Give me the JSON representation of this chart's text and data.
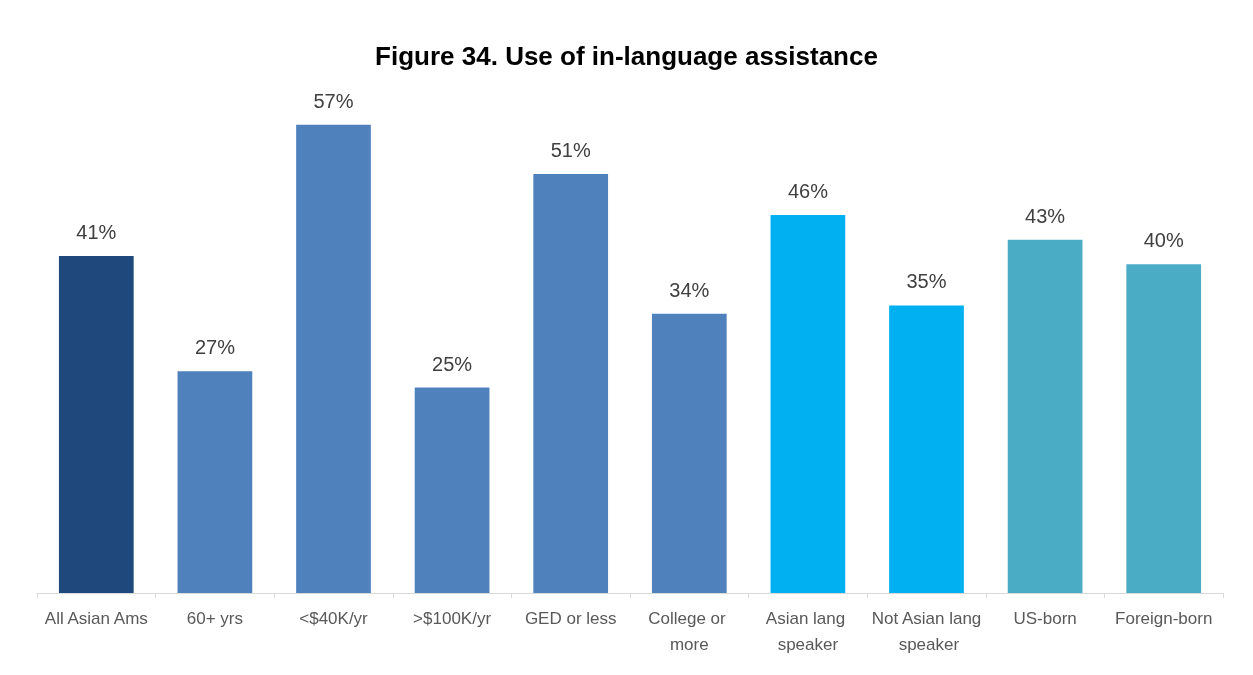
{
  "chart_data": {
    "type": "bar",
    "title": "Figure 34. Use of in-language assistance",
    "categories": [
      "All Asian Ams",
      "60+ yrs",
      "<$40K/yr",
      ">$100K/yr",
      "GED or less",
      "College or more",
      "Asian lang speaker",
      "Not Asian lang speaker",
      "US-born",
      "Foreign-born"
    ],
    "values": [
      41,
      27,
      57,
      25,
      51,
      34,
      46,
      35,
      43,
      40
    ],
    "colors": [
      "#1f497d",
      "#4f81bd",
      "#4f81bd",
      "#4f81bd",
      "#4f81bd",
      "#4f81bd",
      "#00b0f0",
      "#00b0f0",
      "#4bacc6",
      "#4bacc6"
    ],
    "value_labels": [
      "41%",
      "27%",
      "57%",
      "25%",
      "51%",
      "34%",
      "46%",
      "35%",
      "43%",
      "40%"
    ]
  }
}
